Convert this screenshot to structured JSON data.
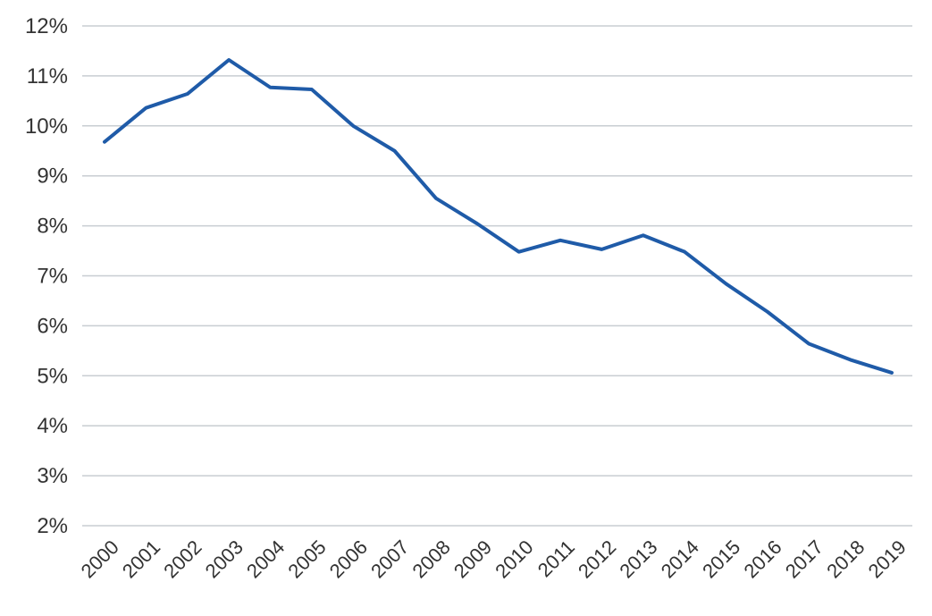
{
  "chart_data": {
    "type": "line",
    "title": "",
    "xlabel": "",
    "ylabel": "",
    "categories": [
      "2000",
      "2001",
      "2002",
      "2003",
      "2004",
      "2005",
      "2006",
      "2007",
      "2008",
      "2009",
      "2010",
      "2011",
      "2012",
      "2013",
      "2014",
      "2015",
      "2016",
      "2017",
      "2018",
      "2019"
    ],
    "series": [
      {
        "values": [
          9.68,
          10.36,
          10.64,
          11.32,
          10.77,
          10.73,
          10.0,
          9.5,
          8.55,
          8.04,
          7.48,
          7.71,
          7.53,
          7.81,
          7.48,
          6.84,
          6.28,
          5.64,
          5.32,
          5.06
        ]
      }
    ],
    "ylim": [
      2,
      12
    ],
    "y_ticks": [
      {
        "value": 12,
        "label": "12%"
      },
      {
        "value": 11,
        "label": "11%"
      },
      {
        "value": 10,
        "label": "10%"
      },
      {
        "value": 9,
        "label": "9%"
      },
      {
        "value": 8,
        "label": "8%"
      },
      {
        "value": 7,
        "label": "7%"
      },
      {
        "value": 6,
        "label": "6%"
      },
      {
        "value": 5,
        "label": "5%"
      },
      {
        "value": 4,
        "label": "4%"
      },
      {
        "value": 3,
        "label": "3%"
      },
      {
        "value": 2,
        "label": "2%"
      }
    ],
    "grid": true,
    "legend": "none",
    "colors": {
      "line": "#1f5ba8",
      "grid": "#c8cdd2",
      "text": "#333333"
    }
  }
}
